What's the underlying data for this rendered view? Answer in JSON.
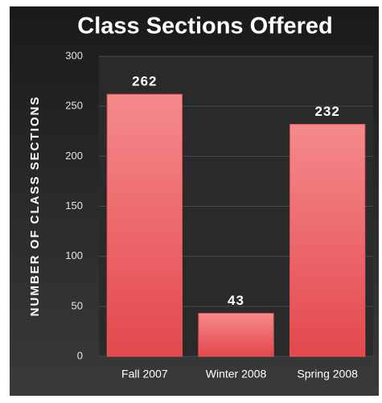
{
  "chart_data": {
    "type": "bar",
    "title": "Class Sections Offered",
    "y_label": "NUMBER OF CLASS SECTIONS",
    "categories": [
      "Fall 2007",
      "Winter 2008",
      "Spring 2008"
    ],
    "values": [
      262,
      43,
      232
    ],
    "color": "#e9575b",
    "ylim": [
      0,
      300
    ],
    "yticks": [
      0,
      50,
      100,
      150,
      200,
      250,
      300
    ],
    "grid": true
  }
}
